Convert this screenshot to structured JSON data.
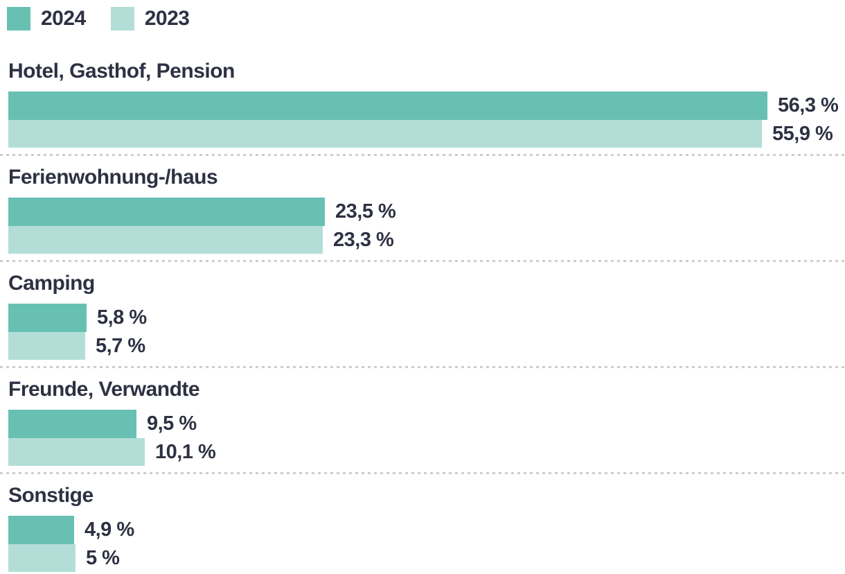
{
  "legend": [
    {
      "label": "2024",
      "color": "#68c0b3"
    },
    {
      "label": "2023",
      "color": "#b3ded7"
    }
  ],
  "colors": {
    "text": "#2d3142",
    "separator": "#cdcdcd",
    "background": "#ffffff"
  },
  "chart_data": {
    "type": "bar",
    "orientation": "horizontal",
    "unit": "%",
    "decimal_separator": ",",
    "grid": "dotted-row-separators",
    "legend_position": "top-left",
    "xlim": [
      0,
      61.4
    ],
    "categories": [
      "Hotel, Gasthof, Pension",
      "Ferienwohnung-/haus",
      "Camping",
      "Freunde, Verwandte",
      "Sonstige"
    ],
    "series": [
      {
        "name": "2024",
        "color": "#68c0b3",
        "values": [
          56.3,
          23.5,
          5.8,
          9.5,
          4.9
        ],
        "labels": [
          "56,3 %",
          "23,5 %",
          "5,8 %",
          "9,5 %",
          "4,9 %"
        ]
      },
      {
        "name": "2023",
        "color": "#b3ded7",
        "values": [
          55.9,
          23.3,
          5.7,
          10.1,
          5.0
        ],
        "labels": [
          "55,9 %",
          "23,3 %",
          "5,7 %",
          "10,1 %",
          "5 %"
        ]
      }
    ]
  }
}
